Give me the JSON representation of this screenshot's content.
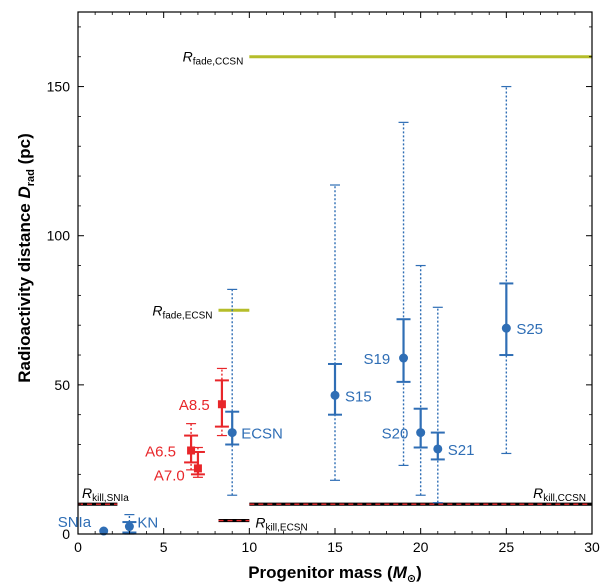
{
  "chart_data": {
    "type": "scatter",
    "xlabel": "Progenitor mass (M⊙)",
    "xlabel_parts": {
      "pre": "Progenitor mass (",
      "italic": "M",
      "sub": "⊙",
      "post": ")"
    },
    "ylabel": "Radioactivity distance Drad (pc)",
    "ylabel_parts": {
      "pre": "Radioactivity distance ",
      "italic": "D",
      "sub": "rad",
      "post": " (pc)"
    },
    "xlim": [
      0,
      30
    ],
    "ylim": [
      0,
      175
    ],
    "xticks": [
      0,
      5,
      10,
      15,
      20,
      25,
      30
    ],
    "yticks": [
      0,
      50,
      100,
      150
    ],
    "colors": {
      "blue": "#2f6eb5",
      "red": "#e8262a",
      "olive": "#b5bd2a",
      "black": "#000000"
    },
    "points": [
      {
        "label": "SNIa",
        "x": 1.5,
        "y": 1,
        "solid": [
          1,
          1
        ],
        "dotted": [
          1,
          1
        ],
        "color": "blue",
        "label_dx": -46,
        "label_dy": -4
      },
      {
        "label": "KN",
        "x": 3,
        "y": 2.5,
        "solid": [
          0.5,
          4
        ],
        "dotted": [
          0,
          6.5
        ],
        "color": "blue",
        "label_dx": 8,
        "label_dy": 1
      },
      {
        "label": "ECSN",
        "x": 9,
        "y": 34,
        "solid": [
          30,
          41
        ],
        "dotted": [
          13,
          82
        ],
        "color": "blue",
        "label_dx": 9,
        "label_dy": 6
      },
      {
        "label": "S15",
        "x": 15,
        "y": 46.5,
        "solid": [
          40,
          57
        ],
        "dotted": [
          18,
          117
        ],
        "color": "blue",
        "label_dx": 10,
        "label_dy": 6
      },
      {
        "label": "S19",
        "x": 19,
        "y": 59,
        "solid": [
          51,
          72
        ],
        "dotted": [
          23,
          138
        ],
        "color": "blue",
        "label_dx": -40,
        "label_dy": 6
      },
      {
        "label": "S20",
        "x": 20,
        "y": 34,
        "solid": [
          29,
          42
        ],
        "dotted": [
          13,
          90
        ],
        "color": "blue",
        "label_dx": -39,
        "label_dy": 6
      },
      {
        "label": "S21",
        "x": 21,
        "y": 28.5,
        "solid": [
          25,
          34
        ],
        "dotted": [
          10.5,
          76
        ],
        "color": "blue",
        "label_dx": 10,
        "label_dy": 6
      },
      {
        "label": "S25",
        "x": 25,
        "y": 69,
        "solid": [
          60,
          84
        ],
        "dotted": [
          27,
          150
        ],
        "color": "blue",
        "label_dx": 10,
        "label_dy": 6
      },
      {
        "label": "A8.5",
        "x": 8.4,
        "y": 43.5,
        "solid": [
          36,
          51.5
        ],
        "dotted": [
          33,
          55.5
        ],
        "color": "red",
        "label_dx": -43,
        "label_dy": 6
      },
      {
        "label": "A6.5",
        "x": 6.6,
        "y": 28,
        "solid": [
          24,
          33
        ],
        "dotted": [
          21.5,
          37
        ],
        "color": "red",
        "label_dx": -46,
        "label_dy": 6
      },
      {
        "label": "A7.0",
        "x": 7.0,
        "y": 22,
        "solid": [
          20,
          27.5
        ],
        "dotted": [
          19,
          29
        ],
        "color": "red",
        "label_dx": -44,
        "label_dy": 12
      }
    ],
    "reference_lines": [
      {
        "label": "R",
        "sub": "fade,CCSN",
        "x": [
          10,
          30
        ],
        "y": 160,
        "style": "olive"
      },
      {
        "label": "R",
        "sub": "fade,ECSN",
        "x": [
          8.2,
          10
        ],
        "y": 75,
        "style": "olive"
      },
      {
        "label": "R",
        "sub": "kill,SNIa",
        "x": [
          0,
          2.3
        ],
        "y": 10,
        "style": "dashed"
      },
      {
        "label": "R",
        "sub": "kill,ECSN",
        "x": [
          8.2,
          10
        ],
        "y": 4.5,
        "style": "dashed"
      },
      {
        "label": "R",
        "sub": "kill,CCSN",
        "x": [
          10,
          30
        ],
        "y": 10,
        "style": "dashed"
      }
    ]
  }
}
